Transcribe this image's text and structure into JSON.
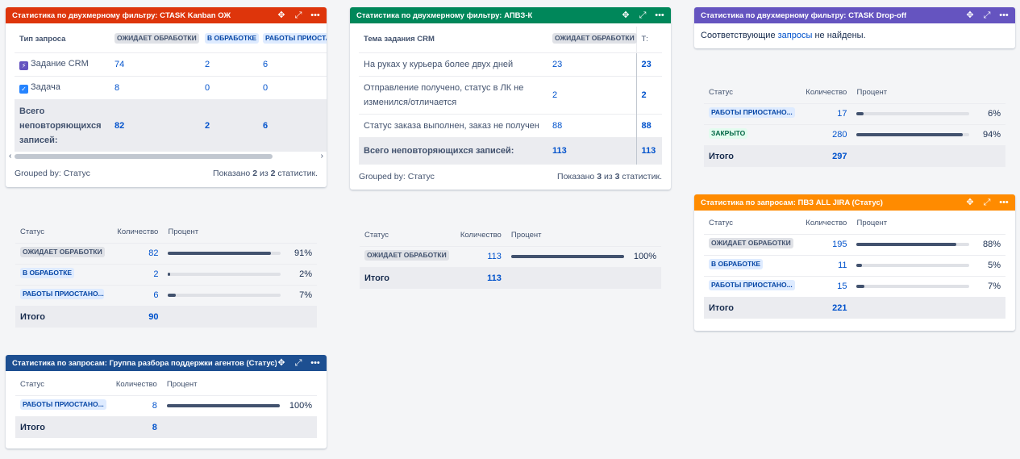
{
  "colors": {
    "g1_header": "#de350b",
    "g2_header": "#00875a",
    "g3_header": "#6554c0",
    "g4_header": "#ff8b00",
    "g5_header": "#1d4f91"
  },
  "icons": {
    "move": "move-icon",
    "maximize": "maximize-icon",
    "more": "more-icon",
    "crm_task": "lightning-icon",
    "task": "task-check-icon"
  },
  "g1": {
    "title": "Статистика по двухмерному фильтру: CTASK Kanban ОЖ",
    "col_header": "Тип запроса",
    "columns": [
      "ОЖИДАЕТ ОБРАБОТКИ",
      "В ОБРАБОТКЕ",
      "РАБОТЫ ПРИОСТАН"
    ],
    "rows": [
      {
        "label": "Задание CRM",
        "values": [
          "74",
          "2",
          "6"
        ]
      },
      {
        "label": "Задача",
        "values": [
          "8",
          "0",
          "0"
        ]
      }
    ],
    "total_label": "Всего неповторяющихся записей:",
    "totals": [
      "82",
      "2",
      "6"
    ],
    "grouped_by": "Grouped by: Статус",
    "shown_prefix": "Показано",
    "shown_a": "2",
    "shown_mid": "из",
    "shown_b": "2",
    "shown_suffix": "статистик."
  },
  "s1": {
    "headers": {
      "status": "Статус",
      "count": "Количество",
      "percent": "Процент"
    },
    "rows": [
      {
        "status": "ОЖИДАЕТ ОБРАБОТКИ",
        "count": "82",
        "percent": "91%",
        "fill": 0.91,
        "style": "grey"
      },
      {
        "status": "В ОБРАБОТКЕ",
        "count": "2",
        "percent": "2%",
        "fill": 0.02,
        "style": "blue"
      },
      {
        "status": "РАБОТЫ ПРИОСТАНО...",
        "count": "6",
        "percent": "7%",
        "fill": 0.07,
        "style": "blue"
      }
    ],
    "total_label": "Итого",
    "total": "90"
  },
  "g5": {
    "title": "Статистика по запросам: Группа разбора поддержки агентов (Статус)",
    "headers": {
      "status": "Статус",
      "count": "Количество",
      "percent": "Процент"
    },
    "rows": [
      {
        "status": "РАБОТЫ ПРИОСТАНО...",
        "count": "8",
        "percent": "100%",
        "fill": 1.0,
        "style": "blue"
      }
    ],
    "total_label": "Итого",
    "total": "8"
  },
  "g2": {
    "title": "Статистика по двухмерному фильтру: АПВЗ-К",
    "col_header": "Тема задания CRM",
    "columns": [
      "ОЖИДАЕТ ОБРАБОТКИ",
      "Т:"
    ],
    "rows": [
      {
        "label": "На руках у курьера более двух дней",
        "values": [
          "23",
          "23"
        ]
      },
      {
        "label": "Отправление получено, статус в ЛК не изменился/отличается",
        "values": [
          "2",
          "2"
        ]
      },
      {
        "label": "Статус заказа выполнен, заказ не получен",
        "values": [
          "88",
          "88"
        ]
      }
    ],
    "total_label": "Всего неповторяющихся записей:",
    "totals": [
      "113",
      "113"
    ],
    "grouped_by": "Grouped by: Статус",
    "shown_prefix": "Показано",
    "shown_a": "3",
    "shown_mid": "из",
    "shown_b": "3",
    "shown_suffix": "статистик."
  },
  "s2": {
    "headers": {
      "status": "Статус",
      "count": "Количество",
      "percent": "Процент"
    },
    "rows": [
      {
        "status": "ОЖИДАЕТ ОБРАБОТКИ",
        "count": "113",
        "percent": "100%",
        "fill": 1.0,
        "style": "grey"
      }
    ],
    "total_label": "Итого",
    "total": "113"
  },
  "g3": {
    "title": "Статистика по двухмерному фильтру: CTASK Drop-off",
    "msg_prefix": "Соответствующие",
    "msg_link": "запросы",
    "msg_suffix": "не найдены."
  },
  "s3": {
    "headers": {
      "status": "Статус",
      "count": "Количество",
      "percent": "Процент"
    },
    "rows": [
      {
        "status": "РАБОТЫ ПРИОСТАНО...",
        "count": "17",
        "percent": "6%",
        "fill": 0.06,
        "style": "blue"
      },
      {
        "status": "ЗАКРЫТО",
        "count": "280",
        "percent": "94%",
        "fill": 0.94,
        "style": "green"
      }
    ],
    "total_label": "Итого",
    "total": "297"
  },
  "g4": {
    "title": "Статистика по запросам: ПВЗ ALL JIRA (Статус)",
    "headers": {
      "status": "Статус",
      "count": "Количество",
      "percent": "Процент"
    },
    "rows": [
      {
        "status": "ОЖИДАЕТ ОБРАБОТКИ",
        "count": "195",
        "percent": "88%",
        "fill": 0.88,
        "style": "grey"
      },
      {
        "status": "В ОБРАБОТКЕ",
        "count": "11",
        "percent": "5%",
        "fill": 0.05,
        "style": "blue"
      },
      {
        "status": "РАБОТЫ ПРИОСТАНО...",
        "count": "15",
        "percent": "7%",
        "fill": 0.07,
        "style": "blue"
      }
    ],
    "total_label": "Итого",
    "total": "221"
  }
}
